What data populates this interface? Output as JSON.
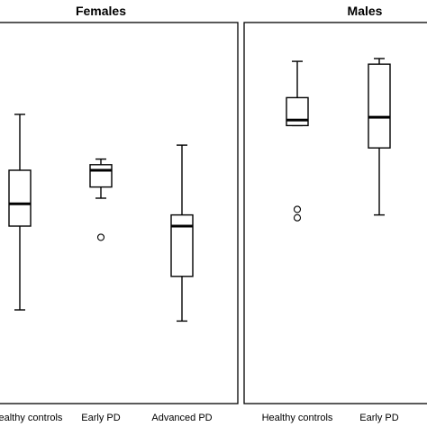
{
  "chart_data": [
    {
      "type": "box",
      "title": "Females",
      "categories": [
        "Healthy controls",
        "Early PD",
        "Advanced PD"
      ],
      "boxes": [
        {
          "category": "Healthy controls",
          "whisker_low": 0.1,
          "q1": 0.4,
          "median": 0.48,
          "q3": 0.6,
          "whisker_high": 0.8,
          "outliers": []
        },
        {
          "category": "Early PD",
          "whisker_low": 0.5,
          "q1": 0.54,
          "median": 0.6,
          "q3": 0.62,
          "whisker_high": 0.64,
          "outliers": [
            0.36
          ]
        },
        {
          "category": "Advanced PD",
          "whisker_low": 0.06,
          "q1": 0.22,
          "median": 0.4,
          "q3": 0.44,
          "whisker_high": 0.69,
          "outliers": []
        }
      ]
    },
    {
      "type": "box",
      "title": "Males",
      "categories": [
        "Healthy controls",
        "Early PD"
      ],
      "boxes": [
        {
          "category": "Healthy controls",
          "whisker_low": 0.76,
          "q1": 0.76,
          "median": 0.78,
          "q3": 0.86,
          "whisker_high": 0.99,
          "outliers": [
            0.43,
            0.46
          ]
        },
        {
          "category": "Early PD",
          "whisker_low": 0.44,
          "q1": 0.68,
          "median": 0.79,
          "q3": 0.98,
          "whisker_high": 1.0,
          "outliers": []
        }
      ]
    }
  ]
}
